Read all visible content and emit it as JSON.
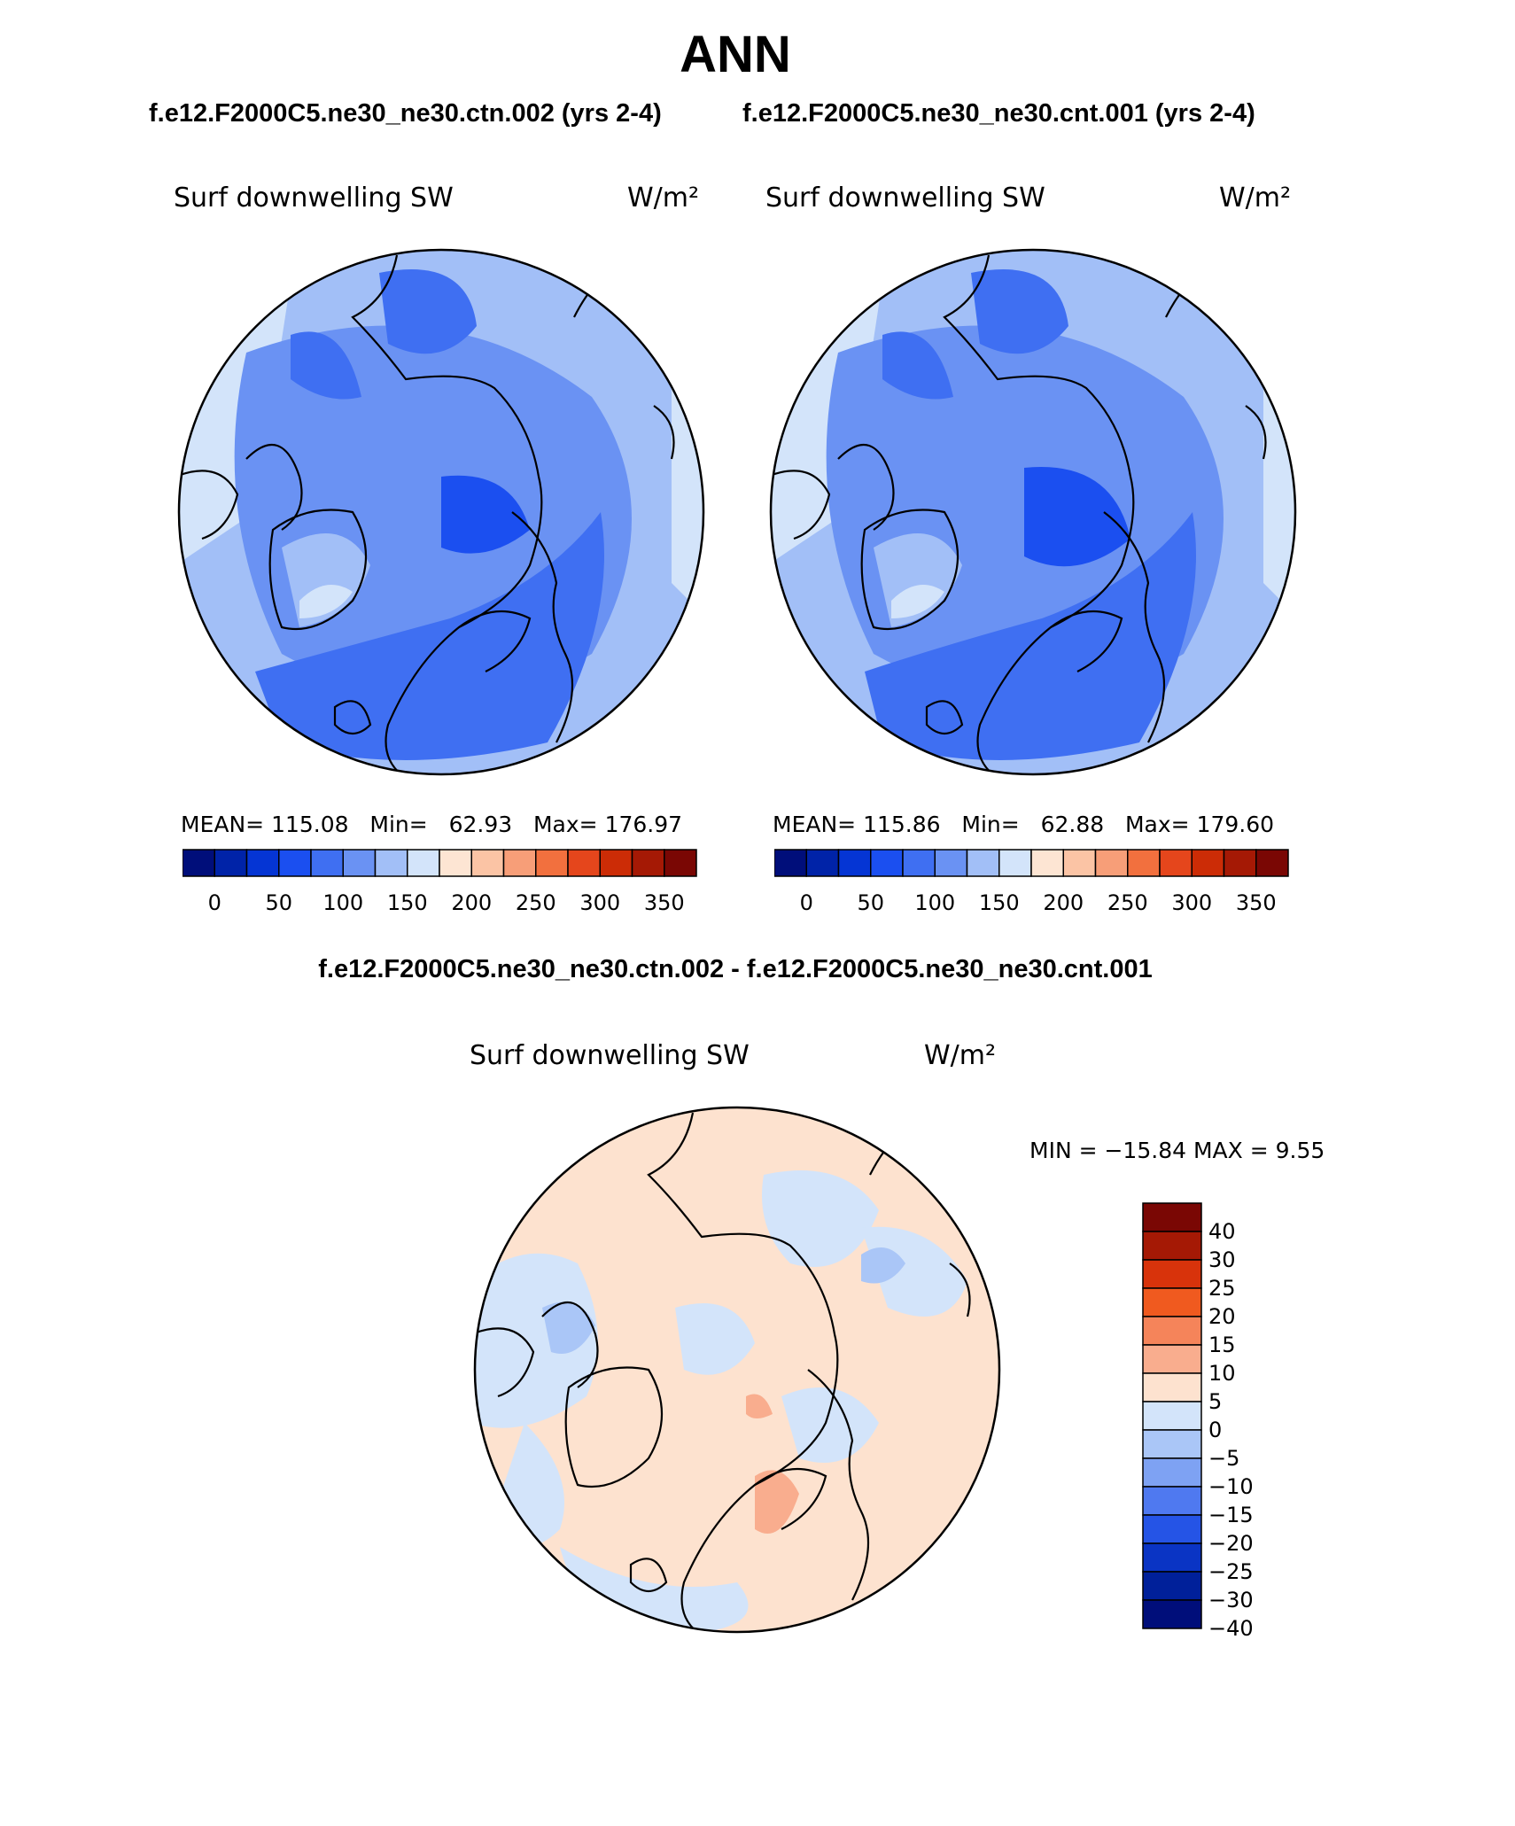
{
  "title": "ANN",
  "header": {
    "left_case": "f.e12.F2000C5.ne30_ne30.ctn.002 (yrs 2-4)",
    "right_case": "f.e12.F2000C5.ne30_ne30.cnt.001 (yrs 2-4)",
    "diff_title": "f.e12.F2000C5.ne30_ne30.ctn.002 - f.e12.F2000C5.ne30_ne30.cnt.001"
  },
  "panels": [
    {
      "variable": "Surf downwelling SW",
      "units": "W/m²",
      "mean_label": "MEAN=",
      "mean": "115.08",
      "min_label": "Min=",
      "min": "62.93",
      "max_label": "Max=",
      "max": "176.97"
    },
    {
      "variable": "Surf downwelling SW",
      "units": "W/m²",
      "mean_label": "MEAN=",
      "mean": "115.86",
      "min_label": "Min=",
      "min": "62.88",
      "max_label": "Max=",
      "max": "179.60"
    }
  ],
  "diff_panel": {
    "variable": "Surf downwelling SW",
    "units": "W/m²",
    "stats": "MIN = −15.84 MAX =    9.55"
  },
  "colorbar_abs": {
    "colors": [
      "#000e7a",
      "#0023a8",
      "#0535d4",
      "#1b4ff0",
      "#3f6ff2",
      "#6a92f3",
      "#a2bff7",
      "#d3e4fa",
      "#fde5d3",
      "#fbc4a5",
      "#f79e78",
      "#f2703e",
      "#e5461c",
      "#cc2c06",
      "#a51905",
      "#7a0704"
    ],
    "labels": [
      "0",
      "50",
      "100",
      "150",
      "200",
      "250",
      "300",
      "350"
    ]
  },
  "colorbar_diff": {
    "colors": [
      "#7a0704",
      "#a51905",
      "#d8330b",
      "#f05a1f",
      "#f5845a",
      "#f9ad8e",
      "#fde2cf",
      "#d3e4fa",
      "#aac6f7",
      "#7ea2f3",
      "#4f79f0",
      "#2554e6",
      "#0a34c4",
      "#00209a",
      "#000e7a"
    ],
    "labels": [
      "40",
      "30",
      "25",
      "20",
      "15",
      "10",
      "5",
      "0",
      "−5",
      "−10",
      "−15",
      "−20",
      "−25",
      "−30",
      "−40"
    ]
  }
}
